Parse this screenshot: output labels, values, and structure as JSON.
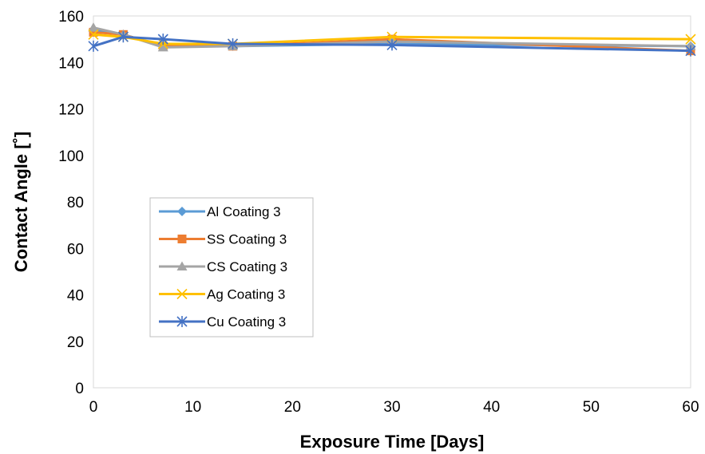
{
  "chart_data": {
    "type": "line",
    "xlabel": "Exposure Time [Days]",
    "ylabel": "Contact Angle [˚]",
    "xlim": [
      0,
      60
    ],
    "ylim": [
      0,
      160
    ],
    "xticks": [
      0,
      10,
      20,
      30,
      40,
      50,
      60
    ],
    "yticks": [
      0,
      20,
      40,
      60,
      80,
      100,
      120,
      140,
      160
    ],
    "grid": false,
    "legend_position": "left-middle",
    "x": [
      0,
      3,
      7,
      14,
      30,
      60
    ],
    "series": [
      {
        "name": "Al Coating 3",
        "color": "#5B9BD5",
        "marker": "diamond",
        "values": [
          154,
          152,
          147,
          147,
          148,
          147
        ]
      },
      {
        "name": "SS Coating 3",
        "color": "#ED7D31",
        "marker": "square",
        "values": [
          153,
          152,
          147,
          147,
          150,
          145
        ]
      },
      {
        "name": "CS Coating 3",
        "color": "#A5A5A5",
        "marker": "triangle",
        "values": [
          155,
          152,
          146.5,
          147,
          149,
          147
        ]
      },
      {
        "name": "Ag Coating 3",
        "color": "#FFC000",
        "marker": "x",
        "values": [
          152,
          151,
          148,
          148,
          151,
          150
        ]
      },
      {
        "name": "Cu Coating 3",
        "color": "#4472C4",
        "marker": "asterisk",
        "values": [
          147,
          151,
          150,
          148,
          147.5,
          145
        ]
      }
    ]
  }
}
